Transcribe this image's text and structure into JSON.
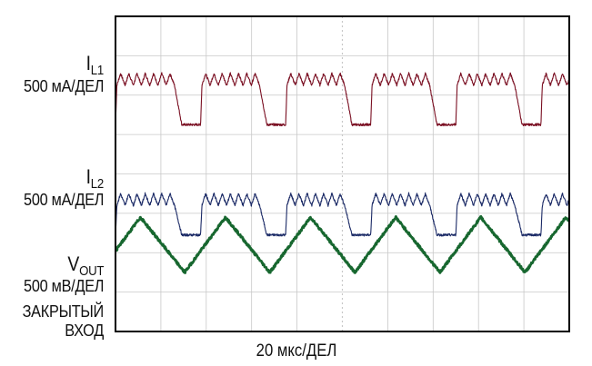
{
  "chart_data": {
    "type": "line",
    "title": "",
    "xlabel": "20 мкс/ДЕЛ",
    "x_divisions": 10,
    "y_divisions": 8,
    "grid": true,
    "colors": {
      "il1": "#7a0f22",
      "il2": "#1b2a66",
      "vout": "#17672f",
      "grid": "#c8c8c8",
      "frame": "#000000"
    },
    "series": [
      {
        "key": "il1",
        "name": "I_L1",
        "label_main": "I",
        "label_sub": "L1",
        "scale": "500 мА/ДЕЛ",
        "units_per_div": 500,
        "units": "мА",
        "switching_period_us": 37.5,
        "phase_us": 0,
        "on_time_us": 26,
        "peak_div": 1.35,
        "trough_div": 1.05,
        "ripple_teeth": 7,
        "low_div": 0.05,
        "baseline_div": 5.2
      },
      {
        "key": "il2",
        "name": "I_L2",
        "label_main": "I",
        "label_sub": "L2",
        "scale": "500 мА/ДЕЛ",
        "units_per_div": 500,
        "units": "мА",
        "switching_period_us": 37.5,
        "phase_us": 0,
        "on_time_us": 26,
        "peak_div": 1.1,
        "trough_div": 0.8,
        "ripple_teeth": 7,
        "low_div": 0.05,
        "baseline_div": 2.4
      },
      {
        "key": "vout",
        "name": "V_OUT",
        "label_main": "V",
        "label_sub": "OUT",
        "scale": "500 мВ/ДЕЛ",
        "coupling": "ЗАКРЫТЫЙ ВХОД",
        "units_per_div": 500,
        "units": "мВ",
        "ripple_period_us": 37.5,
        "peak_time_us": 11,
        "peak_div": 1.8,
        "trough_div": 0.4
      }
    ]
  }
}
